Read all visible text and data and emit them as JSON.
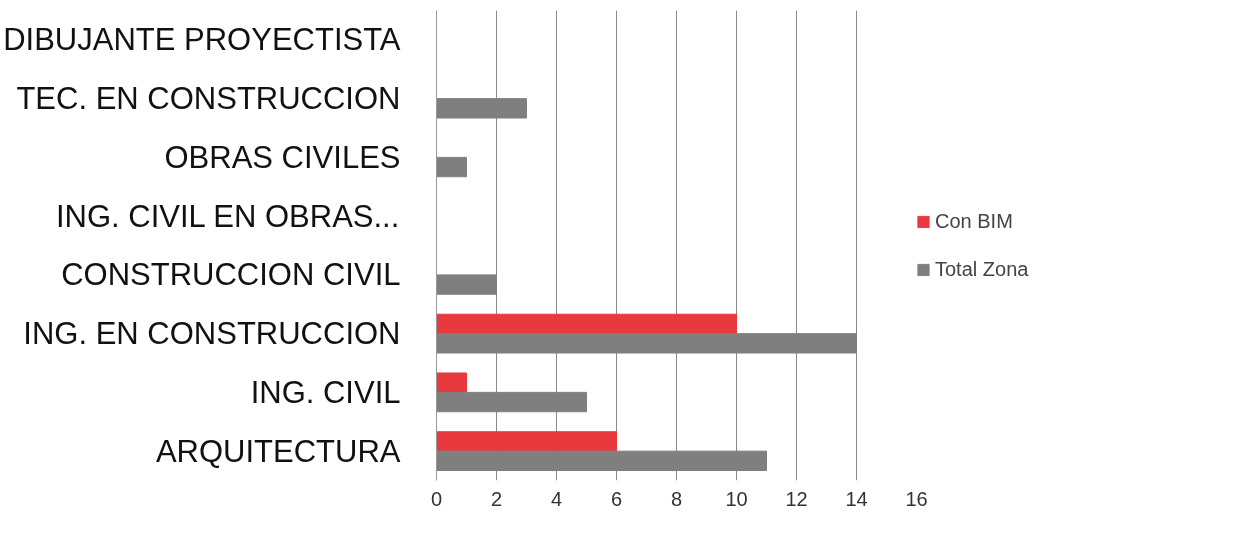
{
  "chart_data": {
    "type": "bar",
    "orientation": "horizontal",
    "categories": [
      "DIBUJANTE PROYECTISTA",
      "TEC. EN CONSTRUCCION",
      "OBRAS CIVILES",
      "ING. CIVIL EN OBRAS...",
      "CONSTRUCCION CIVIL",
      "ING. EN CONSTRUCCION",
      "ING. CIVIL",
      "ARQUITECTURA"
    ],
    "series": [
      {
        "name": "Con BIM",
        "color": "#e8393f",
        "values": [
          0,
          0,
          0,
          0,
          0,
          10,
          1,
          6
        ]
      },
      {
        "name": "Total Zona",
        "color": "#7f7f7f",
        "values": [
          0,
          3,
          1,
          0,
          2,
          14,
          5,
          11
        ]
      }
    ],
    "xlim": [
      0,
      16
    ],
    "xticks": [
      0,
      2,
      4,
      6,
      8,
      10,
      12,
      14,
      16
    ],
    "grid": "x",
    "legend": "right"
  }
}
